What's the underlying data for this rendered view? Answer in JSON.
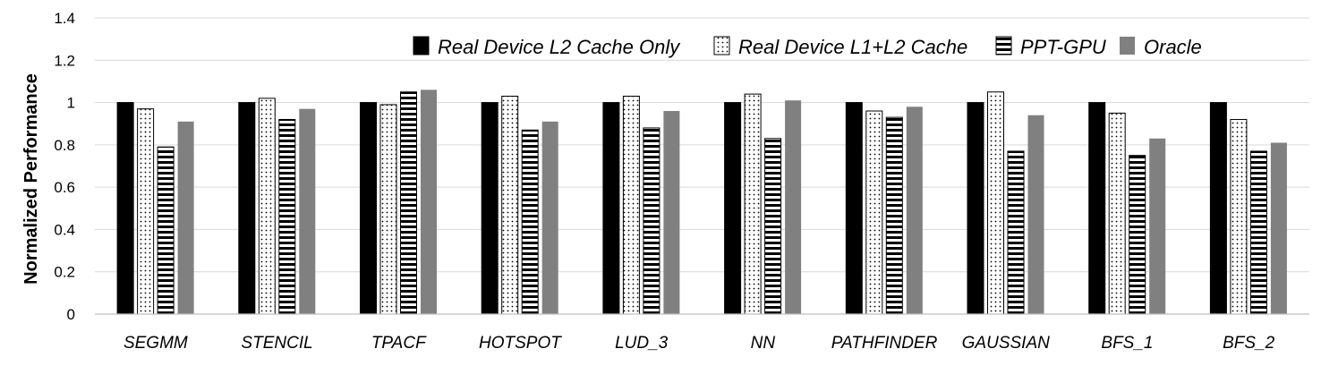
{
  "chart_data": {
    "type": "bar",
    "title": "",
    "xlabel": "",
    "ylabel": "Normalized Performance",
    "ylim": [
      0,
      1.4
    ],
    "yticks": [
      "0",
      "0.2",
      "0.4",
      "0.6",
      "0.8",
      "1",
      "1.2",
      "1.4"
    ],
    "grid": true,
    "legend_position": "top-right",
    "categories": [
      "SEGMM",
      "STENCIL",
      "TPACF",
      "HOTSPOT",
      "LUD_3",
      "NN",
      "PATHFINDER",
      "GAUSSIAN",
      "BFS_1",
      "BFS_2"
    ],
    "series": [
      {
        "name": "Real Device L2 Cache Only",
        "pattern": "solid",
        "color": "#000000",
        "values": [
          1.0,
          1.0,
          1.0,
          1.0,
          1.0,
          1.0,
          1.0,
          1.0,
          1.0,
          1.0
        ]
      },
      {
        "name": "Real Device L1+L2 Cache",
        "pattern": "dots",
        "color": "#000000",
        "values": [
          0.97,
          1.02,
          0.99,
          1.03,
          1.03,
          1.04,
          0.96,
          1.05,
          0.95,
          0.92
        ]
      },
      {
        "name": "PPT-GPU",
        "pattern": "horizontal-stripes",
        "color": "#000000",
        "values": [
          0.79,
          0.92,
          1.05,
          0.87,
          0.88,
          0.83,
          0.93,
          0.77,
          0.75,
          0.77
        ]
      },
      {
        "name": "Oracle",
        "pattern": "solid",
        "color": "#808080",
        "values": [
          0.91,
          0.97,
          1.06,
          0.91,
          0.96,
          1.01,
          0.98,
          0.94,
          0.83,
          0.81
        ]
      }
    ]
  }
}
